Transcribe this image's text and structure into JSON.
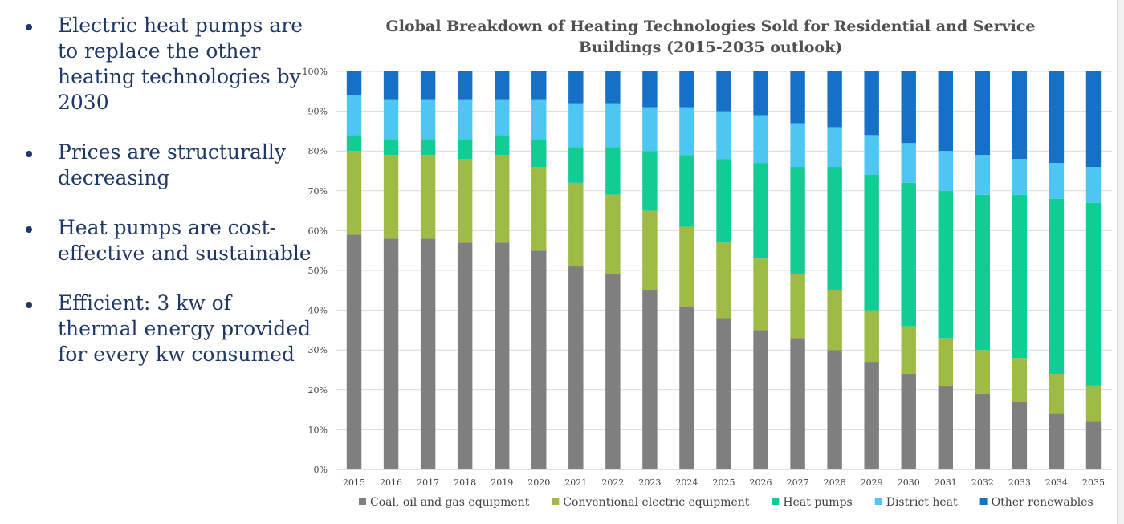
{
  "bullets": [
    "Electric heat pumps are to replace the other heating technologies by 2030",
    "Prices are structurally decreasing",
    "Heat pumps are cost-effective and sustainable",
    "Efficient: 3 kw of thermal energy provided for every kw consumed"
  ],
  "chart_data": {
    "type": "bar",
    "stacked": true,
    "title": "Global Breakdown of Heating Technologies Sold for Residential and Service Buildings (2015-2035 outlook)",
    "xlabel": "",
    "ylabel": "",
    "ylim": [
      0,
      100
    ],
    "ytick_labels": [
      "0%",
      "10%",
      "20%",
      "30%",
      "40%",
      "50%",
      "60%",
      "70%",
      "80%",
      "90%",
      "100%"
    ],
    "grid": true,
    "legend_position": "bottom",
    "categories": [
      "2015",
      "2016",
      "2017",
      "2018",
      "2019",
      "2020",
      "2021",
      "2022",
      "2023",
      "2024",
      "2025",
      "2026",
      "2027",
      "2028",
      "2029",
      "2030",
      "2031",
      "2032",
      "2033",
      "2034",
      "2035"
    ],
    "series": [
      {
        "name": "Coal, oil and gas equipment",
        "color": "#7f7f7f",
        "values": [
          59,
          58,
          58,
          57,
          57,
          55,
          51,
          49,
          45,
          41,
          38,
          35,
          33,
          30,
          27,
          24,
          21,
          19,
          17,
          14,
          12
        ]
      },
      {
        "name": "Conventional electric equipment",
        "color": "#9dbb45",
        "values": [
          21,
          21,
          21,
          21,
          22,
          21,
          21,
          20,
          20,
          20,
          19,
          18,
          16,
          15,
          13,
          12,
          12,
          11,
          11,
          10,
          9
        ]
      },
      {
        "name": "Heat pumps",
        "color": "#12cc96",
        "values": [
          4,
          4,
          4,
          5,
          5,
          7,
          9,
          12,
          15,
          18,
          21,
          24,
          27,
          31,
          34,
          36,
          37,
          39,
          41,
          44,
          46
        ]
      },
      {
        "name": "District heat",
        "color": "#4ec6f3",
        "values": [
          10,
          10,
          10,
          10,
          9,
          10,
          11,
          11,
          11,
          12,
          12,
          12,
          11,
          10,
          10,
          10,
          10,
          10,
          9,
          9,
          9
        ]
      },
      {
        "name": "Other renewables",
        "color": "#1570c6",
        "values": [
          6,
          7,
          7,
          7,
          7,
          7,
          8,
          8,
          9,
          9,
          10,
          11,
          13,
          14,
          16,
          18,
          20,
          21,
          22,
          23,
          24
        ]
      }
    ]
  }
}
